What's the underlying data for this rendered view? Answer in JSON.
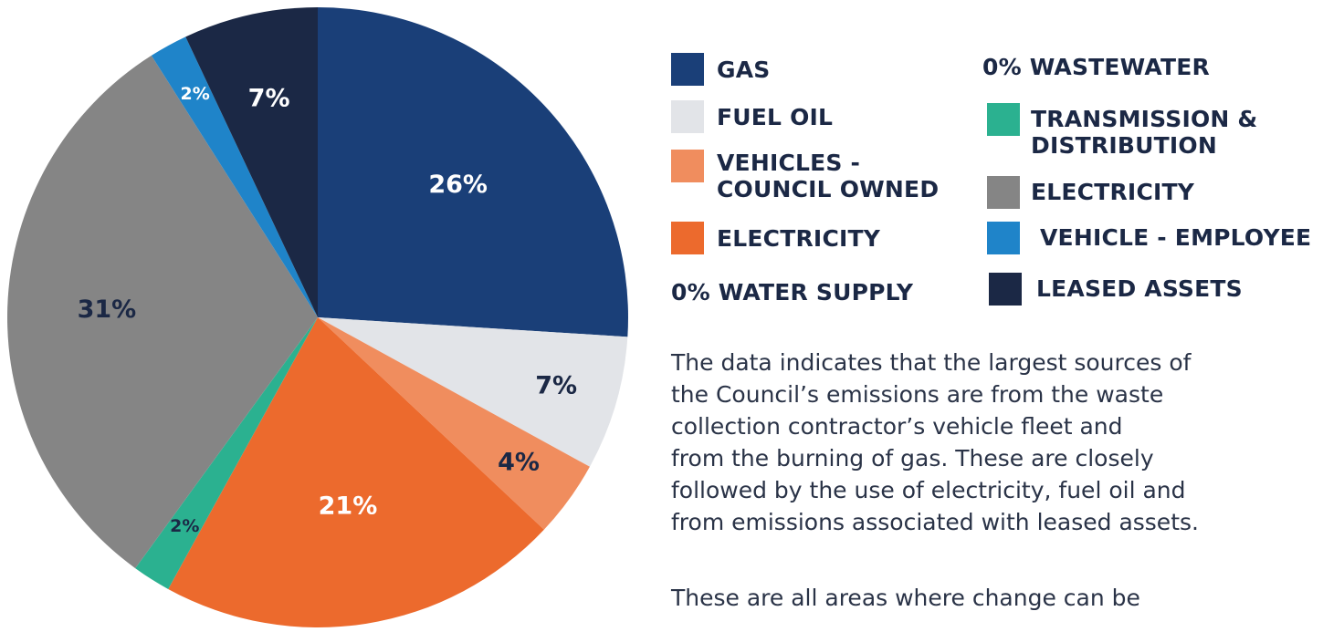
{
  "chart_data": {
    "type": "pie",
    "slices": [
      {
        "label": "GAS",
        "value": 26,
        "display": "26%",
        "color": "#1a3f78",
        "label_color": "#ffffff"
      },
      {
        "label": "FUEL OIL",
        "value": 7,
        "display": "7%",
        "color": "#e2e4e8",
        "label_color": "#1b2845"
      },
      {
        "label": "VEHICLES - COUNCIL OWNED",
        "value": 4,
        "display": "4%",
        "color": "#f08d5e",
        "label_color": "#1b2845"
      },
      {
        "label": "ELECTRICITY",
        "value": 21,
        "display": "21%",
        "color": "#ec6a2d",
        "label_color": "#ffffff"
      },
      {
        "label": "TRANSMISSION & DISTRIBUTION",
        "value": 2,
        "display": "2%",
        "color": "#2bb190",
        "label_color": "#1b2845"
      },
      {
        "label": "ELECTRICITY",
        "value": 31,
        "display": "31%",
        "color": "#858585",
        "label_color": "#1b2845"
      },
      {
        "label": "VEHICLE - EMPLOYEE",
        "value": 2,
        "display": "2%",
        "color": "#1f84c9",
        "label_color": "#ffffff"
      },
      {
        "label": "LEASED ASSETS",
        "value": 7,
        "display": "7%",
        "color": "#1b2845",
        "label_color": "#ffffff"
      }
    ]
  },
  "legend": {
    "gas": "GAS",
    "fuel_oil": "FUEL OIL",
    "vehicles_council_line1": "VEHICLES -",
    "vehicles_council_line2": "COUNCIL OWNED",
    "electricity_left": "ELECTRICITY",
    "water_supply": "0% WATER SUPPLY",
    "wastewater": "0% WASTEWATER",
    "transmission_line1": "TRANSMISSION &",
    "transmission_line2": "DISTRIBUTION",
    "electricity_right": "ELECTRICITY",
    "vehicle_employee": "VEHICLE - EMPLOYEE",
    "leased_assets": "LEASED ASSETS"
  },
  "text": {
    "paragraph1_lines": [
      "The data indicates that the largest sources of",
      "the Council’s emissions are from the waste",
      "collection contractor’s vehicle fleet and",
      "from the burning of gas. These are closely",
      "followed by the use of electricity, fuel oil and",
      "from emissions associated with leased assets."
    ],
    "paragraph2": "These are all areas where change can be"
  }
}
